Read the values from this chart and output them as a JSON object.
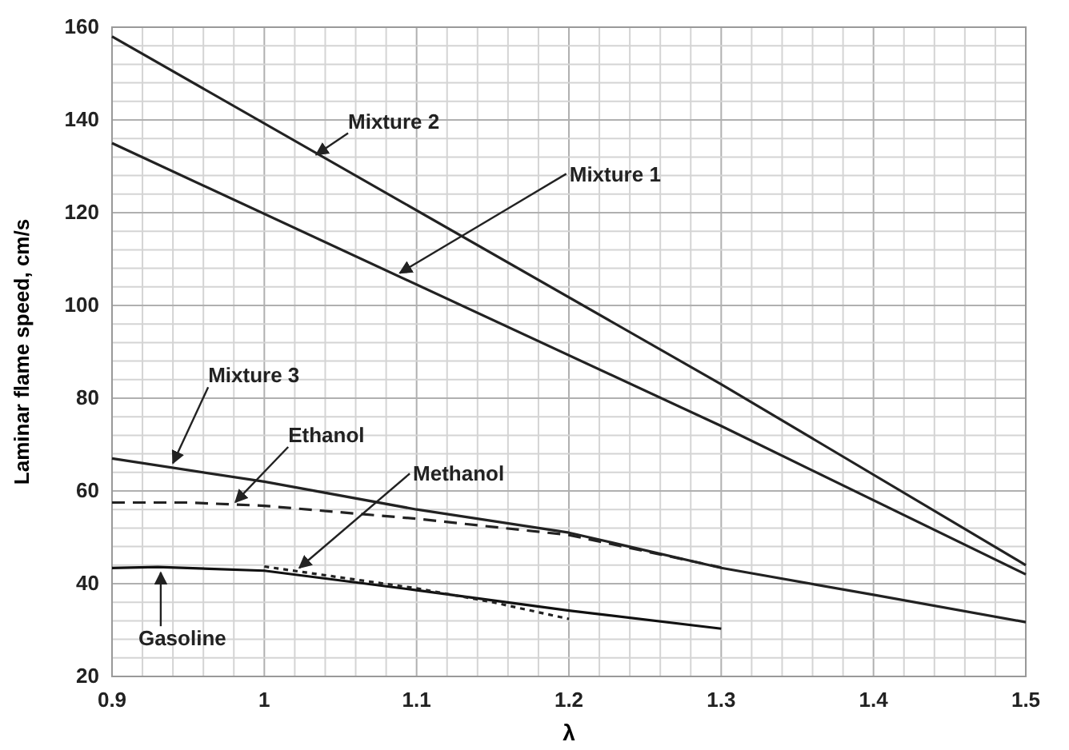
{
  "chart_data": {
    "type": "line",
    "xlabel": "λ",
    "ylabel": "Laminar flame speed, cm/s",
    "xlim": [
      0.9,
      1.5
    ],
    "ylim": [
      20,
      160
    ],
    "xticks": [
      0.9,
      {
        "value": 0.92,
        "label": null
      },
      {
        "value": 0.94,
        "label": null
      },
      {
        "value": 0.96,
        "label": null
      },
      {
        "value": 0.98,
        "label": null
      },
      1,
      {
        "value": 1.02,
        "label": null
      },
      {
        "value": 1.04,
        "label": null
      },
      {
        "value": 1.06,
        "label": null
      },
      {
        "value": 1.08,
        "label": null
      },
      1.1,
      {
        "value": 1.12,
        "label": null
      },
      {
        "value": 1.14,
        "label": null
      },
      {
        "value": 1.16,
        "label": null
      },
      {
        "value": 1.18,
        "label": null
      },
      1.2,
      {
        "value": 1.22,
        "label": null
      },
      {
        "value": 1.24,
        "label": null
      },
      {
        "value": 1.26,
        "label": null
      },
      {
        "value": 1.28,
        "label": null
      },
      1.3,
      {
        "value": 1.32,
        "label": null
      },
      {
        "value": 1.34,
        "label": null
      },
      {
        "value": 1.36,
        "label": null
      },
      {
        "value": 1.38,
        "label": null
      },
      1.4,
      {
        "value": 1.42,
        "label": null
      },
      {
        "value": 1.44,
        "label": null
      },
      {
        "value": 1.46,
        "label": null
      },
      {
        "value": 1.48,
        "label": null
      },
      1.5
    ],
    "yticks": [
      20,
      {
        "value": 24,
        "label": null
      },
      {
        "value": 28,
        "label": null
      },
      {
        "value": 32,
        "label": null
      },
      {
        "value": 36,
        "label": null
      },
      40,
      {
        "value": 44,
        "label": null
      },
      {
        "value": 48,
        "label": null
      },
      {
        "value": 52,
        "label": null
      },
      {
        "value": 56,
        "label": null
      },
      60,
      {
        "value": 64,
        "label": null
      },
      {
        "value": 68,
        "label": null
      },
      {
        "value": 72,
        "label": null
      },
      {
        "value": 76,
        "label": null
      },
      80,
      {
        "value": 84,
        "label": null
      },
      {
        "value": 88,
        "label": null
      },
      {
        "value": 92,
        "label": null
      },
      {
        "value": 96,
        "label": null
      },
      100,
      {
        "value": 104,
        "label": null
      },
      {
        "value": 108,
        "label": null
      },
      {
        "value": 112,
        "label": null
      },
      {
        "value": 116,
        "label": null
      },
      120,
      {
        "value": 124,
        "label": null
      },
      {
        "value": 128,
        "label": null
      },
      {
        "value": 132,
        "label": null
      },
      {
        "value": 136,
        "label": null
      },
      140,
      {
        "value": 144,
        "label": null
      },
      {
        "value": 148,
        "label": null
      },
      {
        "value": 152,
        "label": null
      },
      {
        "value": 156,
        "label": null
      },
      160
    ],
    "grid": true,
    "marker": "none",
    "series": [
      {
        "color": "#222222",
        "line_style": "solid",
        "x": [
          0.9,
          1.3,
          1.5
        ],
        "values": [
          158,
          83,
          44
        ]
      },
      {
        "color": "#222222",
        "line_style": "solid",
        "x": [
          0.9,
          1.3,
          1.5
        ],
        "values": [
          135,
          74,
          42
        ]
      },
      {
        "color": "#222222",
        "line_style": "solid",
        "x": [
          0.9,
          1.0,
          1.1,
          1.2,
          1.3,
          1.4,
          1.5
        ],
        "values": [
          67,
          62,
          56,
          51,
          43.4,
          37.6,
          31.7
        ]
      },
      {
        "color": "#222222",
        "line_style": "dashed",
        "x": [
          0.9,
          0.95,
          1.0,
          1.1,
          1.2,
          1.3
        ],
        "values": [
          57.5,
          57.5,
          56.8,
          54,
          50.5,
          43.5
        ]
      },
      {
        "color": "#111111",
        "line_style": "solid",
        "x": [
          0.9,
          0.93,
          1.0,
          1.1,
          1.2,
          1.3
        ],
        "values": [
          43.4,
          43.6,
          42.8,
          38.6,
          34.2,
          30.3
        ]
      },
      {
        "color": "#222222",
        "line_style": "dotted",
        "x": [
          1.0,
          1.1,
          1.15,
          1.2
        ],
        "values": [
          43.7,
          39,
          36,
          32.4
        ]
      }
    ],
    "annotations": [
      {
        "text": "Mixture 2",
        "x": 1.034,
        "y": 132.5
      },
      {
        "text": "Mixture 1",
        "x": 1.089,
        "y": 107
      },
      {
        "text": "Mixture 3",
        "x": 0.94,
        "y": 66
      },
      {
        "text": "Ethanol",
        "x": 0.981,
        "y": 57.6
      },
      {
        "text": "Methanol",
        "x": 1.023,
        "y": 43.4
      },
      {
        "text": "Gasoline",
        "x": 0.932,
        "y": 42.4
      }
    ]
  }
}
